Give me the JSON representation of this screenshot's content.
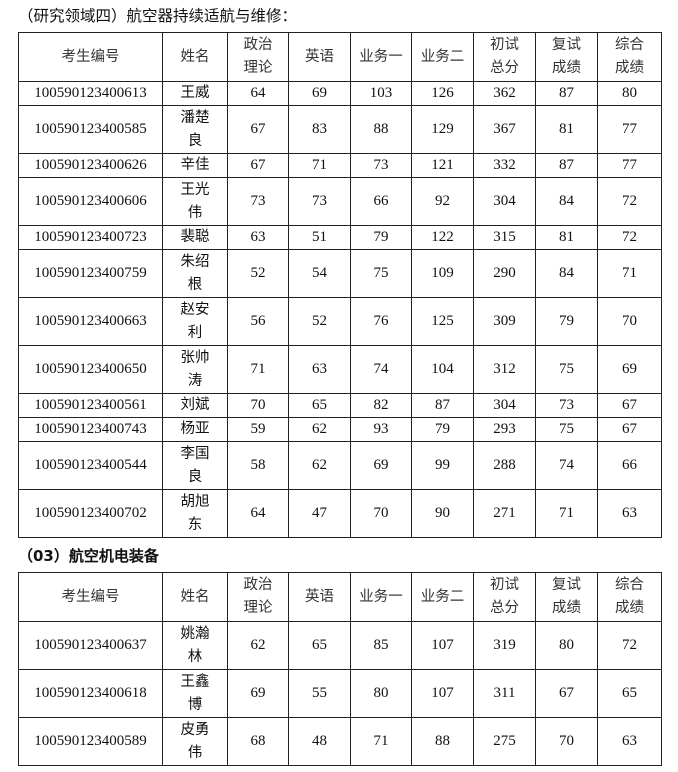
{
  "section1": {
    "title": "（研究领域四）航空器持续适航与维修：",
    "headers": [
      "考生编号",
      "姓名",
      "政治理论",
      "英语",
      "业务一",
      "业务二",
      "初试总分",
      "复试成绩",
      "综合成绩"
    ],
    "rows": [
      [
        "100590123400613",
        "王威",
        "64",
        "69",
        "103",
        "126",
        "362",
        "87",
        "80"
      ],
      [
        "100590123400585",
        "潘楚良",
        "67",
        "83",
        "88",
        "129",
        "367",
        "81",
        "77"
      ],
      [
        "100590123400626",
        "辛佳",
        "67",
        "71",
        "73",
        "121",
        "332",
        "87",
        "77"
      ],
      [
        "100590123400606",
        "王光伟",
        "73",
        "73",
        "66",
        "92",
        "304",
        "84",
        "72"
      ],
      [
        "100590123400723",
        "裴聪",
        "63",
        "51",
        "79",
        "122",
        "315",
        "81",
        "72"
      ],
      [
        "100590123400759",
        "朱绍根",
        "52",
        "54",
        "75",
        "109",
        "290",
        "84",
        "71"
      ],
      [
        "100590123400663",
        "赵安利",
        "56",
        "52",
        "76",
        "125",
        "309",
        "79",
        "70"
      ],
      [
        "100590123400650",
        "张帅涛",
        "71",
        "63",
        "74",
        "104",
        "312",
        "75",
        "69"
      ],
      [
        "100590123400561",
        "刘斌",
        "70",
        "65",
        "82",
        "87",
        "304",
        "73",
        "67"
      ],
      [
        "100590123400743",
        "杨亚",
        "59",
        "62",
        "93",
        "79",
        "293",
        "75",
        "67"
      ],
      [
        "100590123400544",
        "李国良",
        "58",
        "62",
        "69",
        "99",
        "288",
        "74",
        "66"
      ],
      [
        "100590123400702",
        "胡旭东",
        "64",
        "47",
        "70",
        "90",
        "271",
        "71",
        "63"
      ]
    ]
  },
  "section2": {
    "title": "（03）航空机电装备",
    "headers": [
      "考生编号",
      "姓名",
      "政治理论",
      "英语",
      "业务一",
      "业务二",
      "初试总分",
      "复试成绩",
      "综合成绩"
    ],
    "rows": [
      [
        "100590123400637",
        "姚瀚林",
        "62",
        "65",
        "85",
        "107",
        "319",
        "80",
        "72"
      ],
      [
        "100590123400618",
        "王鑫博",
        "69",
        "55",
        "80",
        "107",
        "311",
        "67",
        "65"
      ],
      [
        "100590123400589",
        "皮勇伟",
        "68",
        "48",
        "71",
        "88",
        "275",
        "70",
        "63"
      ]
    ]
  }
}
